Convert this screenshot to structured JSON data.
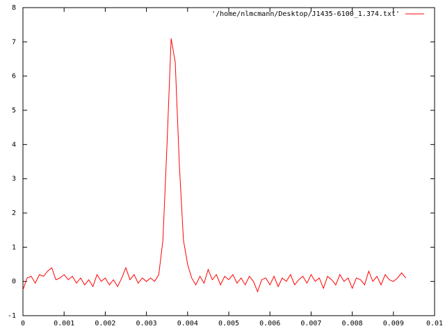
{
  "chart_data": {
    "type": "line",
    "x": [
      0,
      0.0001,
      0.0002,
      0.0003,
      0.0004,
      0.0005,
      0.0006,
      0.0007,
      0.0008,
      0.0009,
      0.001,
      0.0011,
      0.0012,
      0.0013,
      0.0014,
      0.0015,
      0.0016,
      0.0017,
      0.0018,
      0.0019,
      0.002,
      0.0021,
      0.0022,
      0.0023,
      0.0024,
      0.0025,
      0.0026,
      0.0027,
      0.0028,
      0.0029,
      0.003,
      0.0031,
      0.0032,
      0.0033,
      0.0034,
      0.0035,
      0.0036,
      0.0037,
      0.0038,
      0.0039,
      0.004,
      0.0041,
      0.0042,
      0.0043,
      0.0044,
      0.0045,
      0.0046,
      0.0047,
      0.0048,
      0.0049,
      0.005,
      0.0051,
      0.0052,
      0.0053,
      0.0054,
      0.0055,
      0.0056,
      0.0057,
      0.0058,
      0.0059,
      0.006,
      0.0061,
      0.0062,
      0.0063,
      0.0064,
      0.0065,
      0.0066,
      0.0067,
      0.0068,
      0.0069,
      0.007,
      0.0071,
      0.0072,
      0.0073,
      0.0074,
      0.0075,
      0.0076,
      0.0077,
      0.0078,
      0.0079,
      0.008,
      0.0081,
      0.0082,
      0.0083,
      0.0084,
      0.0085,
      0.0086,
      0.0087,
      0.0088,
      0.0089,
      0.009,
      0.0091,
      0.0092,
      0.0093
    ],
    "series": [
      {
        "name": "'/home/nlmcmann/Desktop/J1435-6100_1.374.txt'",
        "color": "#ff0000",
        "values": [
          -0.25,
          0.1,
          0.15,
          -0.05,
          0.2,
          0.15,
          0.3,
          0.4,
          0.05,
          0.1,
          0.2,
          0.05,
          0.15,
          -0.05,
          0.1,
          -0.1,
          0.05,
          -0.15,
          0.2,
          0.0,
          0.1,
          -0.1,
          0.05,
          -0.15,
          0.1,
          0.4,
          0.05,
          0.2,
          -0.05,
          0.1,
          0.0,
          0.1,
          0.0,
          0.2,
          1.2,
          4.0,
          7.1,
          6.4,
          3.4,
          1.2,
          0.5,
          0.1,
          -0.1,
          0.15,
          -0.05,
          0.35,
          0.05,
          0.2,
          -0.1,
          0.15,
          0.05,
          0.2,
          -0.05,
          0.1,
          -0.1,
          0.15,
          0.0,
          -0.3,
          0.05,
          0.1,
          -0.1,
          0.15,
          -0.15,
          0.1,
          0.0,
          0.2,
          -0.1,
          0.05,
          0.15,
          -0.05,
          0.2,
          0.0,
          0.1,
          -0.2,
          0.15,
          0.05,
          -0.1,
          0.2,
          0.0,
          0.1,
          -0.2,
          0.1,
          0.05,
          -0.1,
          0.3,
          0.0,
          0.15,
          -0.1,
          0.2,
          0.05,
          0.0,
          0.1,
          0.25,
          0.1
        ]
      }
    ],
    "xlim": [
      0,
      0.01
    ],
    "xticks": [
      0,
      0.001,
      0.002,
      0.003,
      0.004,
      0.005,
      0.006,
      0.007,
      0.008,
      0.009,
      0.01
    ],
    "ylim": [
      -1,
      8
    ],
    "yticks": [
      -1,
      0,
      1,
      2,
      3,
      4,
      5,
      6,
      7,
      8
    ],
    "grid": false,
    "legend": "top-right"
  }
}
